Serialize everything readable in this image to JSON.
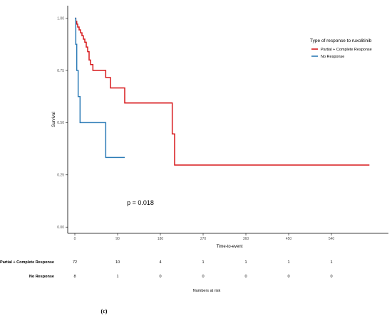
{
  "chart_data": {
    "type": "line",
    "subtype": "kaplan-meier",
    "ylabel": "Survival",
    "xlabel": "Time-to-event",
    "xlim": [
      -15,
      660
    ],
    "ylim": [
      -0.03,
      1.06
    ],
    "x_ticks": [
      0,
      90,
      180,
      270,
      360,
      450,
      540
    ],
    "x_tick_labels": [
      "0",
      "90",
      "180",
      "270",
      "360",
      "450",
      "540"
    ],
    "y_ticks": [
      0,
      0.25,
      0.5,
      0.75,
      1
    ],
    "y_tick_labels": [
      "0.00",
      "0.25",
      "0.50",
      "0.75",
      "1.00"
    ],
    "grid": false,
    "legend_position": "right",
    "legend_title": "Type of response to ruxolitinib",
    "pvalue_text": "p = 0.018",
    "series": [
      {
        "name": "Partial + Complete Response",
        "color": "#d7191c",
        "x": [
          0,
          2,
          4,
          6,
          9,
          12,
          15,
          18,
          21,
          24,
          27,
          30,
          33,
          38,
          60,
          65,
          75,
          105,
          200,
          205,
          210,
          620
        ],
        "y": [
          1.0,
          0.985,
          0.972,
          0.958,
          0.944,
          0.93,
          0.916,
          0.9,
          0.885,
          0.862,
          0.84,
          0.8,
          0.778,
          0.75,
          0.75,
          0.716,
          0.666,
          0.594,
          0.594,
          0.446,
          0.297,
          0.297
        ]
      },
      {
        "name": "No Response",
        "color": "#2c7bb6",
        "x": [
          0,
          2,
          4,
          7,
          11,
          65,
          105
        ],
        "y": [
          1.0,
          0.875,
          0.75,
          0.625,
          0.5,
          0.333,
          0.333
        ]
      }
    ]
  },
  "risk_table": {
    "title": "Numbers at risk",
    "rows": [
      {
        "label": "Partial + Complete Response",
        "values": [
          "72",
          "10",
          "4",
          "1",
          "1",
          "1",
          "1"
        ]
      },
      {
        "label": "No Response",
        "values": [
          "8",
          "1",
          "0",
          "0",
          "0",
          "0",
          "0"
        ]
      }
    ]
  },
  "caption": "(c)"
}
